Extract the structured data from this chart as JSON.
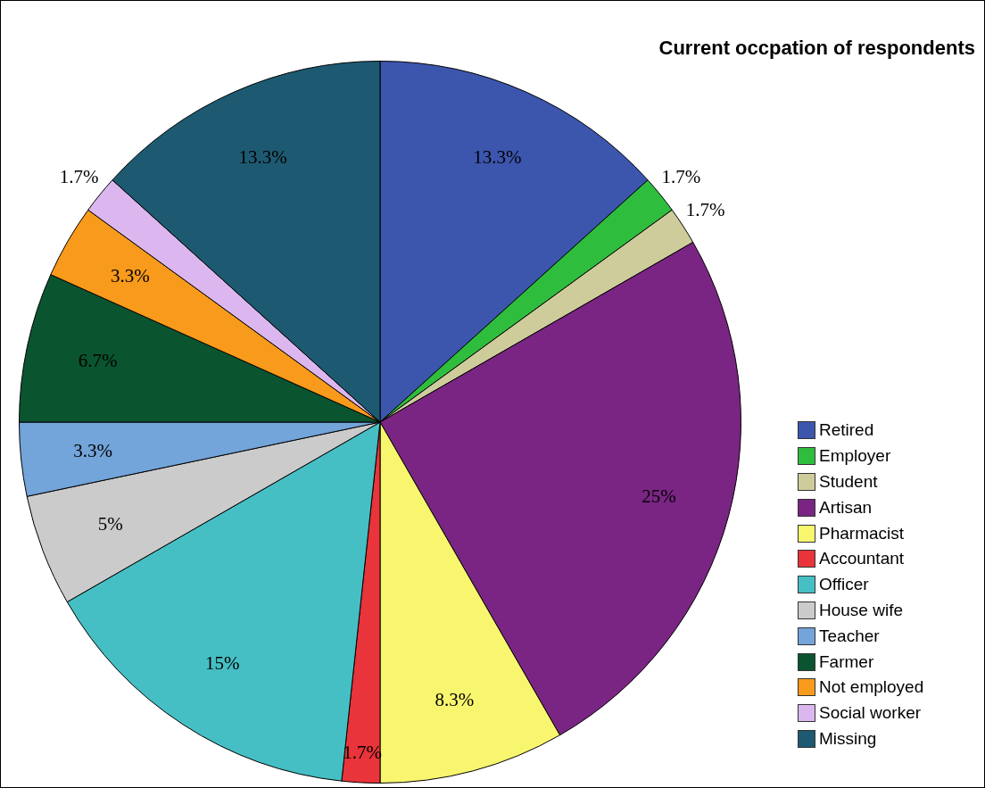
{
  "chart_data": {
    "type": "pie",
    "title": "Current occpation of respondents",
    "categories": [
      "Retired",
      "Employer",
      "Student",
      "Artisan",
      "Pharmacist",
      "Accountant",
      "Officer",
      "House wife",
      "Teacher",
      "Farmer",
      "Not employed",
      "Social worker",
      "Missing"
    ],
    "values": [
      13.3,
      1.7,
      1.7,
      25,
      8.3,
      1.7,
      15,
      5,
      3.3,
      6.7,
      3.3,
      1.7,
      13.3
    ],
    "value_labels": [
      "13.3%",
      "1.7%",
      "1.7%",
      "25%",
      "8.3%",
      "1.7%",
      "15%",
      "5%",
      "3.3%",
      "6.7%",
      "3.3%",
      "1.7%",
      "13.3%"
    ],
    "colors": [
      "#3c56ae",
      "#2fbd3e",
      "#cfcc9c",
      "#7a2583",
      "#f8f66f",
      "#e8343a",
      "#46bfc4",
      "#cbcbcb",
      "#73a4da",
      "#0b5430",
      "#f89a1b",
      "#dcb6ee",
      "#1d5a72"
    ],
    "legend": "bottom right"
  }
}
